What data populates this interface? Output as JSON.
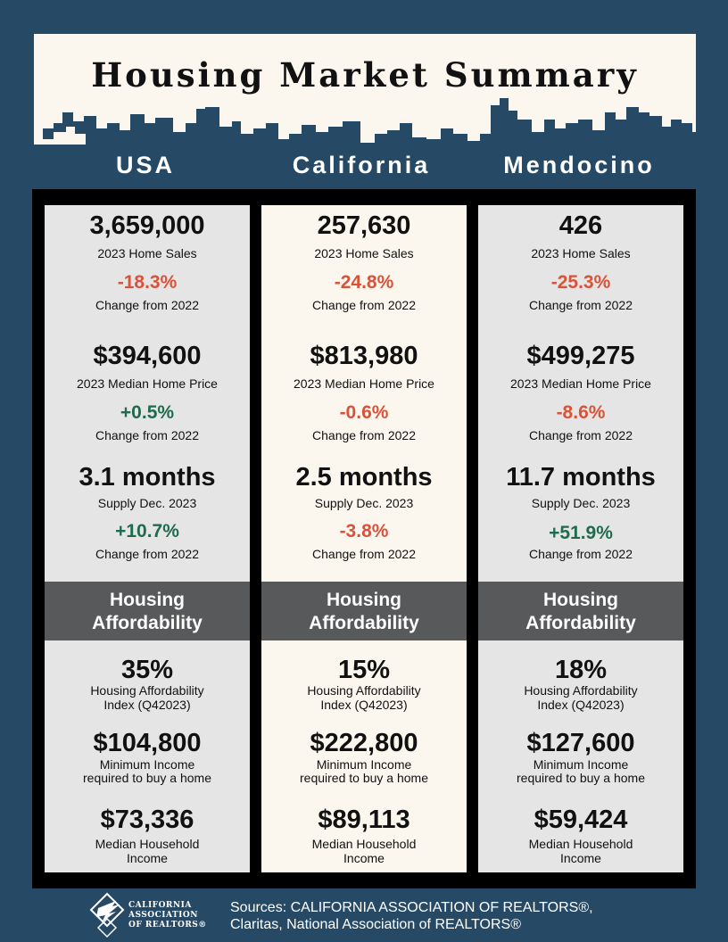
{
  "title": "Housing Market Summary",
  "colors": {
    "background": "#264a66",
    "banner": "#fbf7ee",
    "negative": "#d9533a",
    "positive": "#1f6b4d",
    "affordability_band": "#58595b",
    "panel_gray": "#e5e5e5",
    "panel_cream": "#fbf7ee"
  },
  "columns": [
    {
      "name": "USA",
      "home_sales": "3,659,000",
      "home_sales_label": "2023 Home Sales",
      "home_sales_change": "-18.3%",
      "home_sales_change_label": "Change from 2022",
      "median_price": "$394,600",
      "median_price_label": "2023 Median Home Price",
      "median_price_change": "+0.5%",
      "median_price_change_label": "Change from 2022",
      "supply": "3.1 months",
      "supply_label": "Supply Dec. 2023",
      "supply_change": "+10.7%",
      "supply_change_label": "Change from 2022",
      "affordability_line1": "Housing",
      "affordability_line2": "Affordability",
      "hai": "35%",
      "hai_label1": "Housing Affordability",
      "hai_label2": "Index (Q42023)",
      "min_income": "$104,800",
      "min_income_label1": "Minimum Income",
      "min_income_label2": "required to buy a home",
      "median_income": "$73,336",
      "median_income_label1": "Median Household",
      "median_income_label2": "Income"
    },
    {
      "name": "California",
      "home_sales": "257,630",
      "home_sales_label": "2023 Home Sales",
      "home_sales_change": "-24.8%",
      "home_sales_change_label": "Change from 2022",
      "median_price": "$813,980",
      "median_price_label": "2023 Median Home Price",
      "median_price_change": "-0.6%",
      "median_price_change_label": "Change from 2022",
      "supply": "2.5 months",
      "supply_label": "Supply Dec. 2023",
      "supply_change": "-3.8%",
      "supply_change_label": "Change from 2022",
      "affordability_line1": "Housing",
      "affordability_line2": "Affordability",
      "hai": "15%",
      "hai_label1": "Housing Affordability",
      "hai_label2": "Index (Q42023)",
      "min_income": "$222,800",
      "min_income_label1": "Minimum Income",
      "min_income_label2": "required to buy a home",
      "median_income": "$89,113",
      "median_income_label1": "Median Household",
      "median_income_label2": "Income"
    },
    {
      "name": "Mendocino",
      "home_sales": "426",
      "home_sales_label": "2023 Home Sales",
      "home_sales_change": "-25.3%",
      "home_sales_change_label": "Change from 2022",
      "median_price": "$499,275",
      "median_price_label": "2023 Median Home Price",
      "median_price_change": "-8.6%",
      "median_price_change_label": "Change from 2022",
      "supply": "11.7 months",
      "supply_label": "Supply Dec. 2023",
      "supply_change": "+51.9%",
      "supply_change_label": "Change from 2022",
      "affordability_line1": "Housing",
      "affordability_line2": "Affordability",
      "hai": "18%",
      "hai_label1": "Housing Affordability",
      "hai_label2": "Index (Q42023)",
      "min_income": "$127,600",
      "min_income_label1": "Minimum Income",
      "min_income_label2": "required to buy a home",
      "median_income": "$59,424",
      "median_income_label1": "Median Household",
      "median_income_label2": "Income"
    }
  ],
  "footer": {
    "logo_line1": "CALIFORNIA",
    "logo_line2": "ASSOCIATION",
    "logo_line3": "OF REALTORS®",
    "sources_line1": "Sources: CALIFORNIA ASSOCIATION OF REALTORS®,",
    "sources_line2": "Claritas, National Association of REALTORS®"
  }
}
